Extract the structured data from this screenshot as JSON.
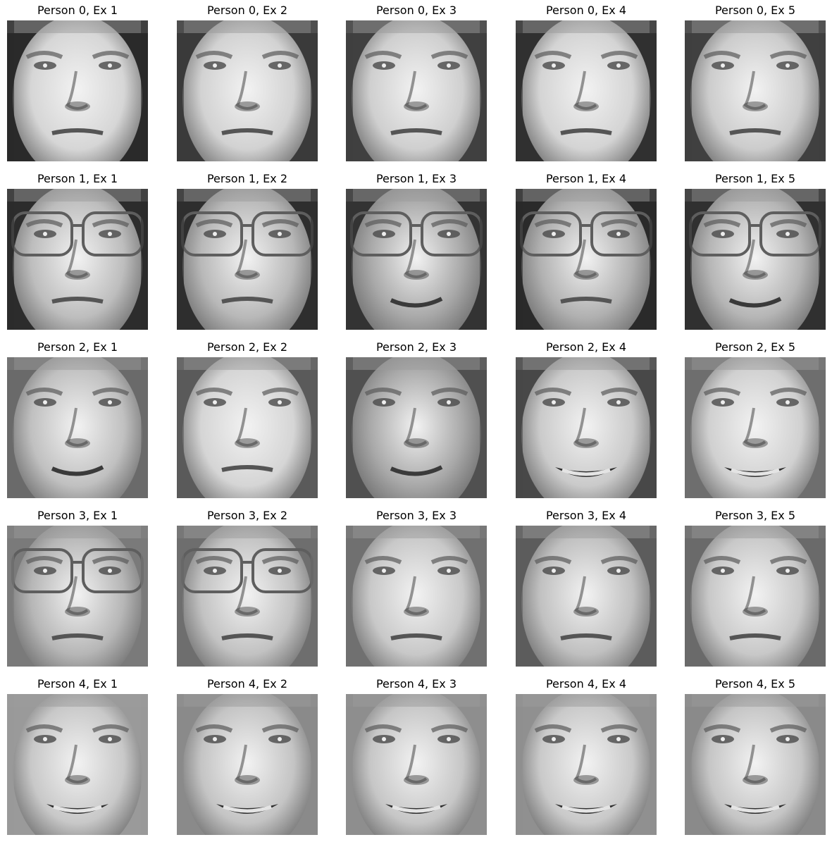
{
  "figure": {
    "colormap": "gray",
    "panels": [
      {
        "title": "Person 0, Ex 1",
        "person": 0,
        "example": 1,
        "glasses": false,
        "smile": 0,
        "bg": "#2a2a2a",
        "skin": "#d6d6d6"
      },
      {
        "title": "Person 0, Ex 2",
        "person": 0,
        "example": 2,
        "glasses": false,
        "smile": 0,
        "bg": "#3a3a3a",
        "skin": "#d2d2d2"
      },
      {
        "title": "Person 0, Ex 3",
        "person": 0,
        "example": 3,
        "glasses": false,
        "smile": 0,
        "bg": "#404040",
        "skin": "#cfcfcf"
      },
      {
        "title": "Person 0, Ex 4",
        "person": 0,
        "example": 4,
        "glasses": false,
        "smile": 0,
        "bg": "#303030",
        "skin": "#d4d4d4"
      },
      {
        "title": "Person 0, Ex 5",
        "person": 0,
        "example": 5,
        "glasses": false,
        "smile": 0,
        "bg": "#404040",
        "skin": "#cccccc"
      },
      {
        "title": "Person 1, Ex 1",
        "person": 1,
        "example": 1,
        "glasses": true,
        "smile": 0,
        "bg": "#2c2c2c",
        "skin": "#bdbdbd"
      },
      {
        "title": "Person 1, Ex 2",
        "person": 1,
        "example": 2,
        "glasses": true,
        "smile": 0,
        "bg": "#2e2e2e",
        "skin": "#b8b8b8"
      },
      {
        "title": "Person 1, Ex 3",
        "person": 1,
        "example": 3,
        "glasses": true,
        "smile": 1,
        "bg": "#333333",
        "skin": "#a8a8a8"
      },
      {
        "title": "Person 1, Ex 4",
        "person": 1,
        "example": 4,
        "glasses": true,
        "smile": 0,
        "bg": "#2a2a2a",
        "skin": "#b0b0b0"
      },
      {
        "title": "Person 1, Ex 5",
        "person": 1,
        "example": 5,
        "glasses": true,
        "smile": 1,
        "bg": "#303030",
        "skin": "#b5b5b5"
      },
      {
        "title": "Person 2, Ex 1",
        "person": 2,
        "example": 1,
        "glasses": false,
        "smile": 1,
        "bg": "#6a6a6a",
        "skin": "#c0c0c0"
      },
      {
        "title": "Person 2, Ex 2",
        "person": 2,
        "example": 2,
        "glasses": false,
        "smile": 0,
        "bg": "#5a5a5a",
        "skin": "#d5d5d5"
      },
      {
        "title": "Person 2, Ex 3",
        "person": 2,
        "example": 3,
        "glasses": false,
        "smile": 1,
        "bg": "#505050",
        "skin": "#a8a8a8"
      },
      {
        "title": "Person 2, Ex 4",
        "person": 2,
        "example": 4,
        "glasses": false,
        "smile": 2,
        "bg": "#484848",
        "skin": "#cacaca"
      },
      {
        "title": "Person 2, Ex 5",
        "person": 2,
        "example": 5,
        "glasses": false,
        "smile": 2,
        "bg": "#6e6e6e",
        "skin": "#d0d0d0"
      },
      {
        "title": "Person 3, Ex 1",
        "person": 3,
        "example": 1,
        "glasses": true,
        "smile": 0,
        "bg": "#7a7a7a",
        "skin": "#b6b6b6"
      },
      {
        "title": "Person 3, Ex 2",
        "person": 3,
        "example": 2,
        "glasses": true,
        "smile": 0,
        "bg": "#6e6e6e",
        "skin": "#c2c2c2"
      },
      {
        "title": "Person 3, Ex 3",
        "person": 3,
        "example": 3,
        "glasses": false,
        "smile": 0,
        "bg": "#707070",
        "skin": "#c8c8c8"
      },
      {
        "title": "Person 3, Ex 4",
        "person": 3,
        "example": 4,
        "glasses": false,
        "smile": 0,
        "bg": "#5c5c5c",
        "skin": "#c0c0c0"
      },
      {
        "title": "Person 3, Ex 5",
        "person": 3,
        "example": 5,
        "glasses": false,
        "smile": 0,
        "bg": "#6a6a6a",
        "skin": "#c8c8c8"
      },
      {
        "title": "Person 4, Ex 1",
        "person": 4,
        "example": 1,
        "glasses": false,
        "smile": 2,
        "bg": "#9a9a9a",
        "skin": "#c8c8c8"
      },
      {
        "title": "Person 4, Ex 2",
        "person": 4,
        "example": 2,
        "glasses": false,
        "smile": 2,
        "bg": "#8a8a8a",
        "skin": "#c4c4c4"
      },
      {
        "title": "Person 4, Ex 3",
        "person": 4,
        "example": 3,
        "glasses": false,
        "smile": 2,
        "bg": "#8e8e8e",
        "skin": "#c6c6c6"
      },
      {
        "title": "Person 4, Ex 4",
        "person": 4,
        "example": 4,
        "glasses": false,
        "smile": 2,
        "bg": "#909090",
        "skin": "#c9c9c9"
      },
      {
        "title": "Person 4, Ex 5",
        "person": 4,
        "example": 5,
        "glasses": false,
        "smile": 2,
        "bg": "#8a8a8a",
        "skin": "#c5c5c5"
      }
    ]
  }
}
